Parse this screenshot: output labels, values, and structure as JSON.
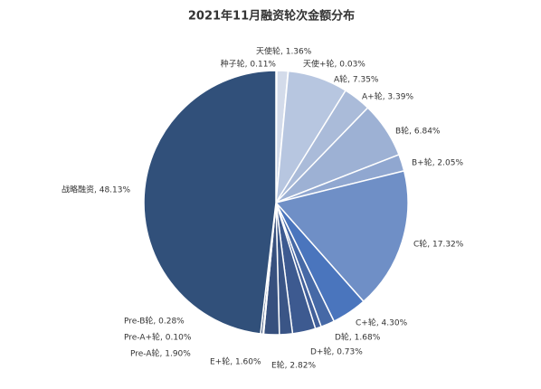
{
  "chart_data": {
    "type": "pie",
    "title": "2021年11月融资轮次金额分布",
    "values": [
      0.11,
      1.36,
      0.03,
      7.35,
      3.39,
      6.84,
      2.05,
      17.32,
      4.3,
      1.68,
      0.73,
      2.82,
      1.6,
      1.9,
      0.1,
      0.28,
      48.13
    ],
    "value_labels": [
      "种子轮, 0.11%",
      "天使轮, 1.36%",
      "天使+轮, 0.03%",
      "A轮, 7.35%",
      "A+轮, 3.39%",
      "B轮, 6.84%",
      "B+轮, 2.05%",
      "C轮, 17.32%",
      "C+轮, 4.30%",
      "D轮, 1.68%",
      "D+轮, 0.73%",
      "E轮, 2.82%",
      "E+轮, 1.60%",
      "Pre-A轮, 1.90%",
      "Pre-A+轮, 0.10%",
      "Pre-B轮, 0.28%",
      "战略融资, 48.13%"
    ],
    "colors": [
      "#dfe4ee",
      "#d3dbea",
      "#cbd4e6",
      "#b7c6e0",
      "#aabbd9",
      "#9db1d4",
      "#90a7d0",
      "#6f8fc6",
      "#4a75bd",
      "#4669a6",
      "#42609a",
      "#3d5a90",
      "#3a5586",
      "#37507e",
      "#354c78",
      "#334a74",
      "#31507a"
    ]
  }
}
